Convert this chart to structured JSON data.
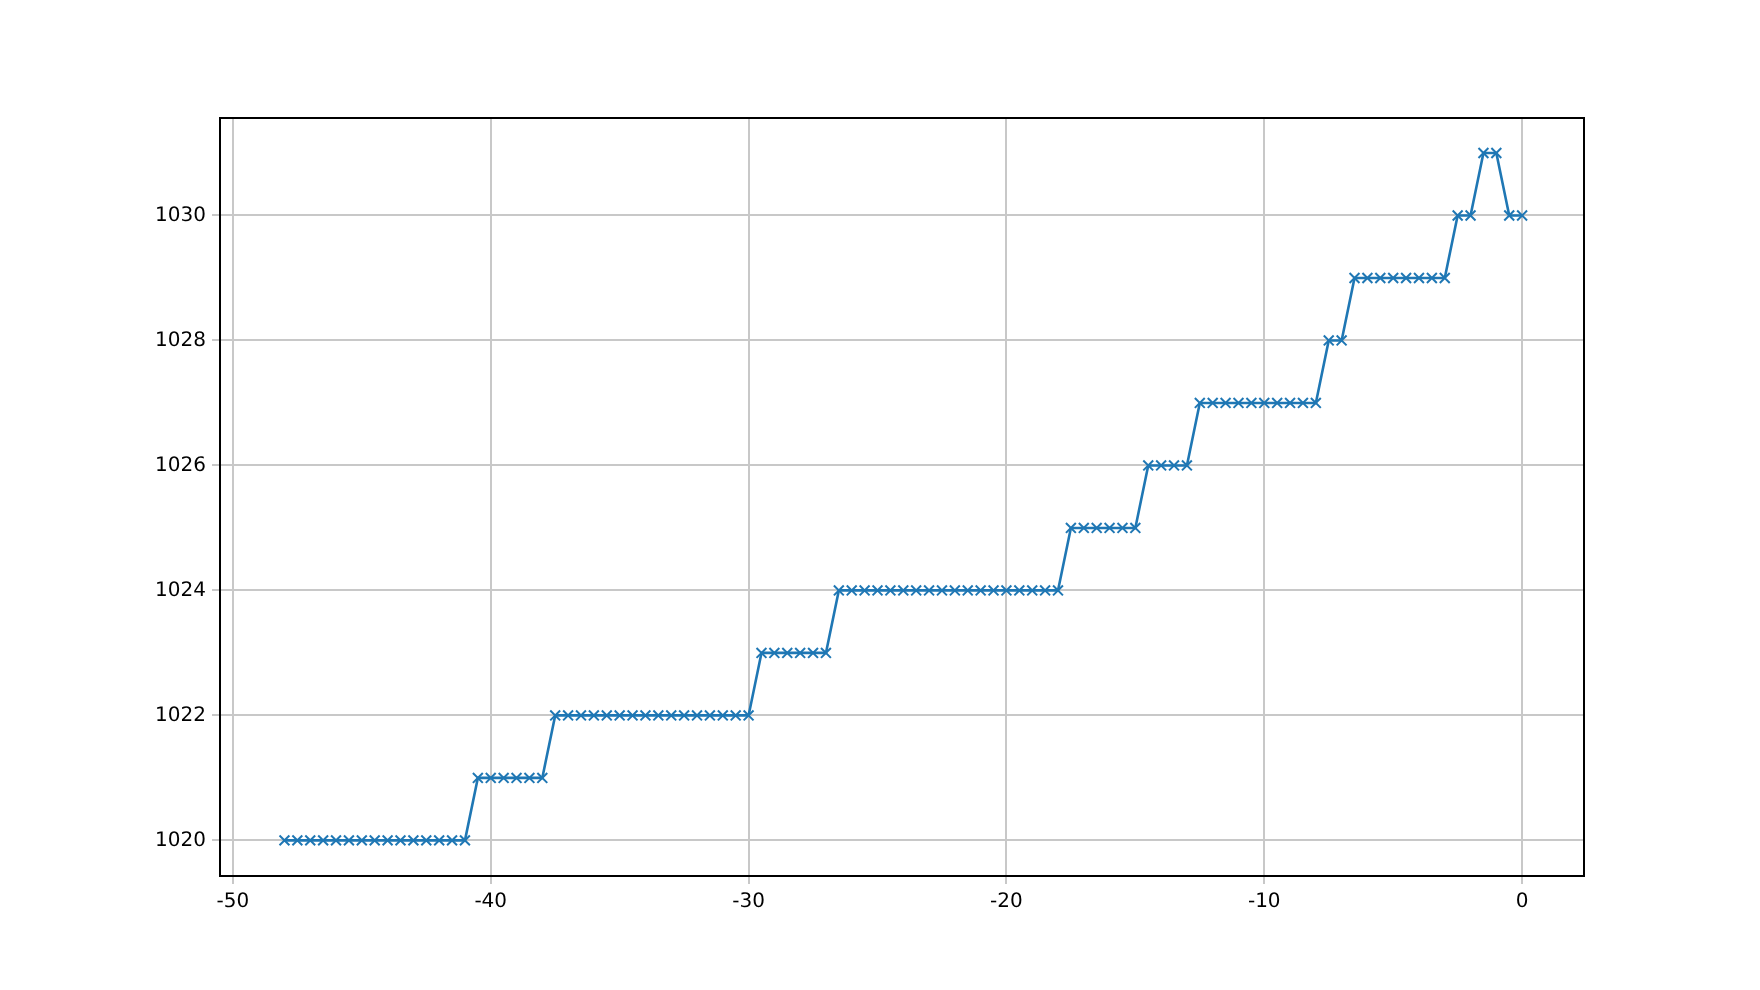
{
  "chart_data": {
    "type": "line",
    "color": "#1f77b4",
    "marker": "cross",
    "grid": true,
    "line_style": "solid",
    "x": [
      -48,
      -47.5,
      -47,
      -46.5,
      -46,
      -45.5,
      -45,
      -44.5,
      -44,
      -43.5,
      -43,
      -42.5,
      -42,
      -41.5,
      -41,
      -40.5,
      -40,
      -39.5,
      -39,
      -38.5,
      -38,
      -37.5,
      -37,
      -36.5,
      -36,
      -35.5,
      -35,
      -34.5,
      -34,
      -33.5,
      -33,
      -32.5,
      -32,
      -31.5,
      -31,
      -30.5,
      -30,
      -29.5,
      -29,
      -28.5,
      -28,
      -27.5,
      -27,
      -26.5,
      -26,
      -25.5,
      -25,
      -24.5,
      -24,
      -23.5,
      -23,
      -22.5,
      -22,
      -21.5,
      -21,
      -20.5,
      -20,
      -19.5,
      -19,
      -18.5,
      -18,
      -17.5,
      -17,
      -16.5,
      -16,
      -15.5,
      -15,
      -14.5,
      -14,
      -13.5,
      -13,
      -12.5,
      -12,
      -11.5,
      -11,
      -10.5,
      -10,
      -9.5,
      -9,
      -8.5,
      -8,
      -7.5,
      -7,
      -6.5,
      -6,
      -5.5,
      -5,
      -4.5,
      -4,
      -3.5,
      -3,
      -2.5,
      -2,
      -1.5,
      -1,
      -0.5,
      0
    ],
    "values": [
      1020,
      1020,
      1020,
      1020,
      1020,
      1020,
      1020,
      1020,
      1020,
      1020,
      1020,
      1020,
      1020,
      1020,
      1020,
      1021,
      1021,
      1021,
      1021,
      1021,
      1021,
      1022,
      1022,
      1022,
      1022,
      1022,
      1022,
      1022,
      1022,
      1022,
      1022,
      1022,
      1022,
      1022,
      1022,
      1022,
      1022,
      1023,
      1023,
      1023,
      1023,
      1023,
      1023,
      1024,
      1024,
      1024,
      1024,
      1024,
      1024,
      1024,
      1024,
      1024,
      1024,
      1024,
      1024,
      1024,
      1024,
      1024,
      1024,
      1024,
      1024,
      1025,
      1025,
      1025,
      1025,
      1025,
      1025,
      1026,
      1026,
      1026,
      1026,
      1027,
      1027,
      1027,
      1027,
      1027,
      1027,
      1027,
      1027,
      1027,
      1027,
      1028,
      1028,
      1029,
      1029,
      1029,
      1029,
      1029,
      1029,
      1029,
      1029,
      1030,
      1030,
      1031,
      1031,
      1030,
      1030
    ],
    "xlim": [
      -50.5,
      2.4
    ],
    "xticks": [
      -50,
      -40,
      -30,
      -20,
      -10,
      0
    ],
    "ylim": [
      1019.43,
      1031.56
    ],
    "yticks": [
      1020,
      1022,
      1024,
      1026,
      1028,
      1030
    ]
  }
}
